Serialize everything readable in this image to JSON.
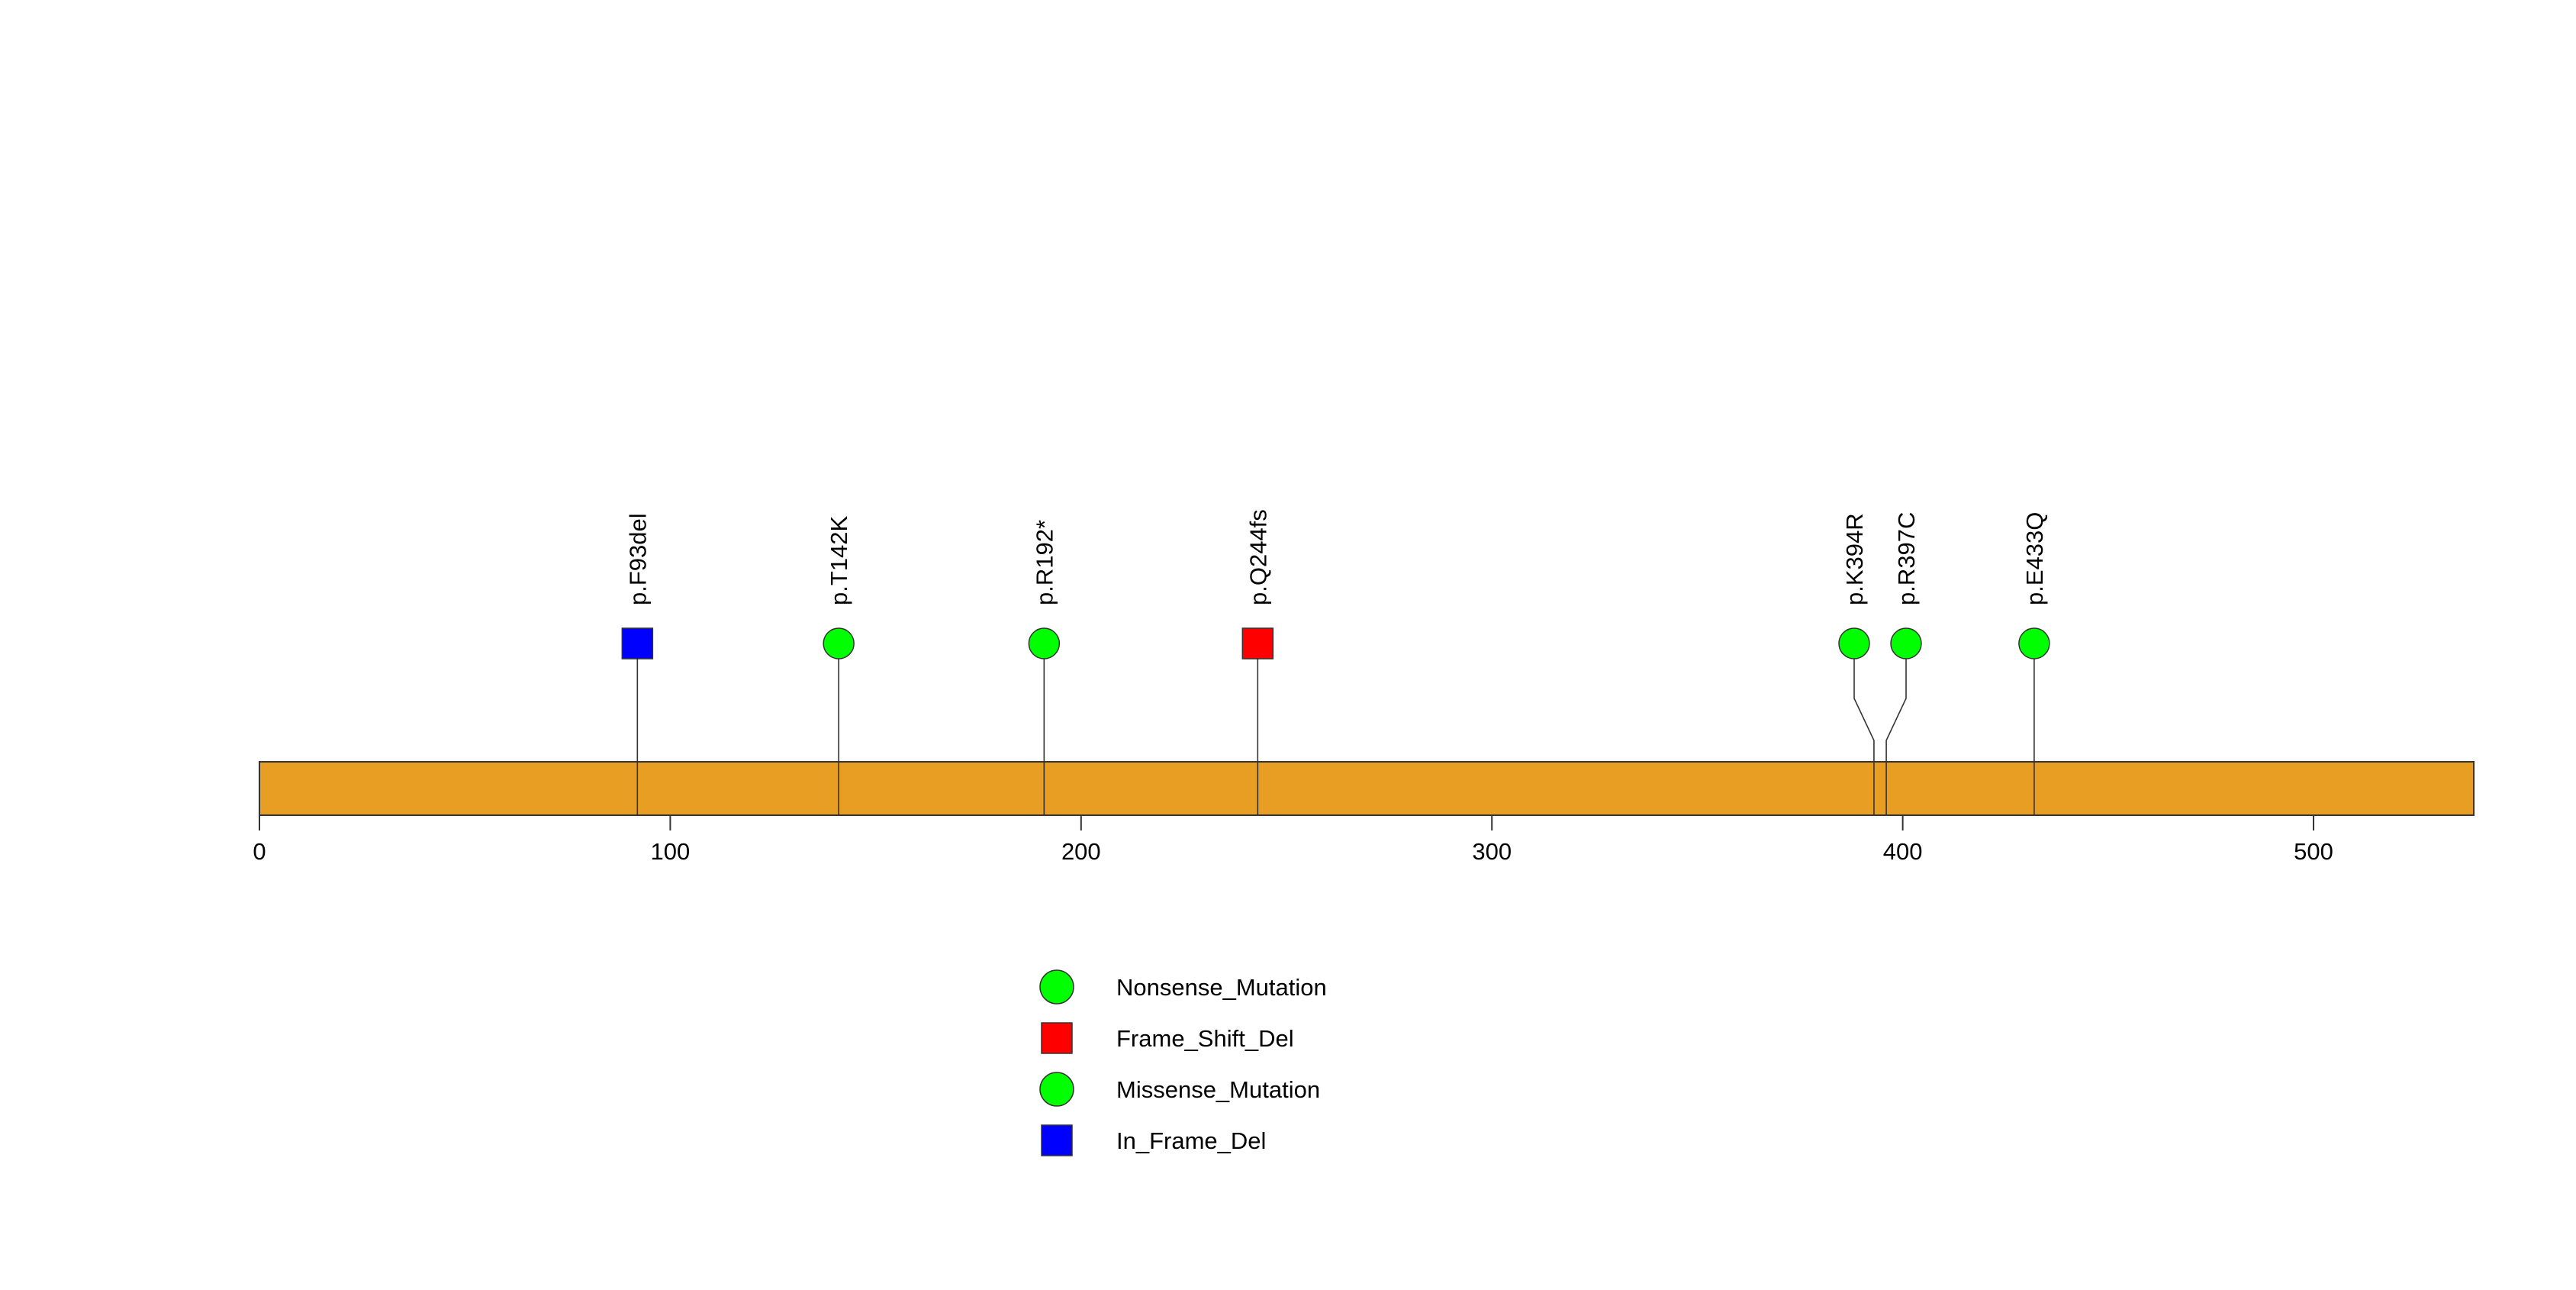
{
  "chart_data": {
    "type": "lollipop",
    "protein_length": 539,
    "xlim": [
      0,
      539
    ],
    "x_ticks": [
      0,
      100,
      200,
      300,
      400,
      500
    ],
    "x_tick_labels": [
      "0",
      "100",
      "200",
      "300",
      "400",
      "500"
    ],
    "domain_color": "#E89E22",
    "mutations": [
      {
        "label": "p.F93del",
        "position": 92,
        "type": "In_Frame_Del"
      },
      {
        "label": "p.T142K",
        "position": 141,
        "type": "Missense_Mutation"
      },
      {
        "label": "p.R192*",
        "position": 191,
        "type": "Nonsense_Mutation"
      },
      {
        "label": "p.Q244fs",
        "position": 243,
        "type": "Frame_Shift_Del"
      },
      {
        "label": "p.K394R",
        "position": 393,
        "type": "Missense_Mutation"
      },
      {
        "label": "p.R397C",
        "position": 396,
        "type": "Missense_Mutation"
      },
      {
        "label": "p.E433Q",
        "position": 432,
        "type": "Missense_Mutation"
      }
    ],
    "legend": [
      {
        "label": "Nonsense_Mutation",
        "shape": "circle",
        "color": "#00FF00"
      },
      {
        "label": "Frame_Shift_Del",
        "shape": "square",
        "color": "#FF0000"
      },
      {
        "label": "Missense_Mutation",
        "shape": "circle",
        "color": "#00FF00"
      },
      {
        "label": "In_Frame_Del",
        "shape": "square",
        "color": "#0000FF"
      }
    ]
  }
}
